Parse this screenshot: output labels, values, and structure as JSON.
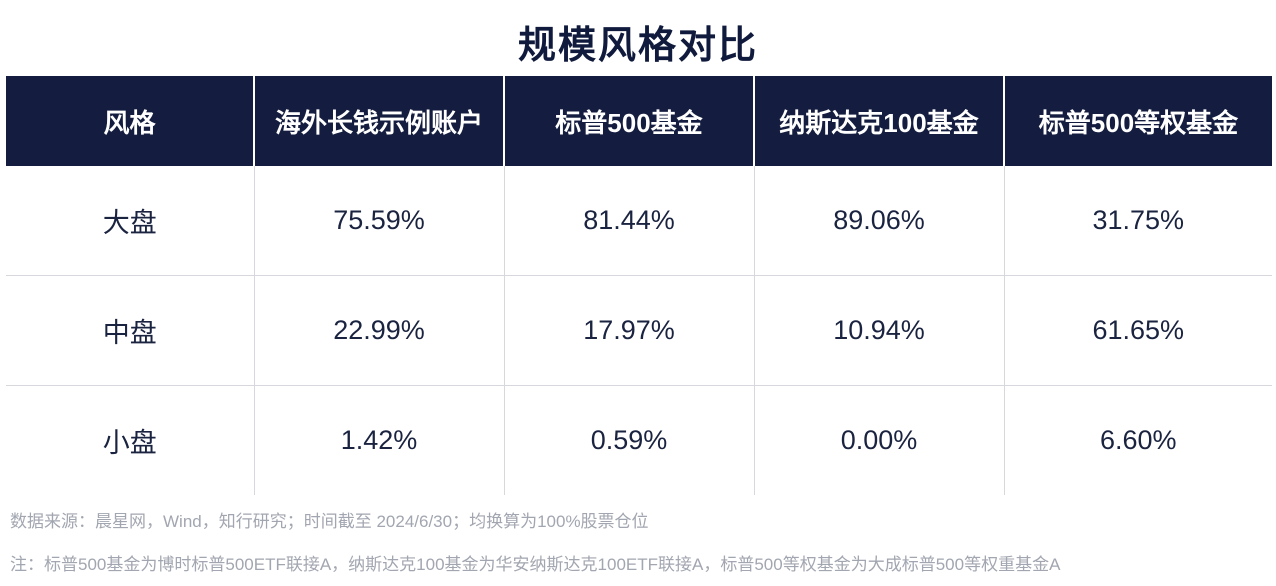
{
  "chart_data": {
    "type": "table",
    "title": "规模风格对比",
    "columns": [
      "风格",
      "海外长钱示例账户",
      "标普500基金",
      "纳斯达克100基金",
      "标普500等权基金"
    ],
    "rows": [
      [
        "大盘",
        "75.59%",
        "81.44%",
        "89.06%",
        "31.75%"
      ],
      [
        "中盘",
        "22.99%",
        "17.97%",
        "10.94%",
        "61.65%"
      ],
      [
        "小盘",
        "1.42%",
        "0.59%",
        "0.00%",
        "6.60%"
      ]
    ],
    "source": "数据来源：晨星网，Wind，知行研究；时间截至 2024/6/30；均换算为100%股票仓位",
    "footnote": "注：标普500基金为博时标普500ETF联接A，纳斯达克100基金为华安纳斯达克100ETF联接A，标普500等权基金为大成标普500等权重基金A"
  },
  "colors": {
    "header_background": "#141d3f",
    "header_text": "#ffffff",
    "body_text": "#1a2340",
    "note_text": "#a2a6b0"
  }
}
